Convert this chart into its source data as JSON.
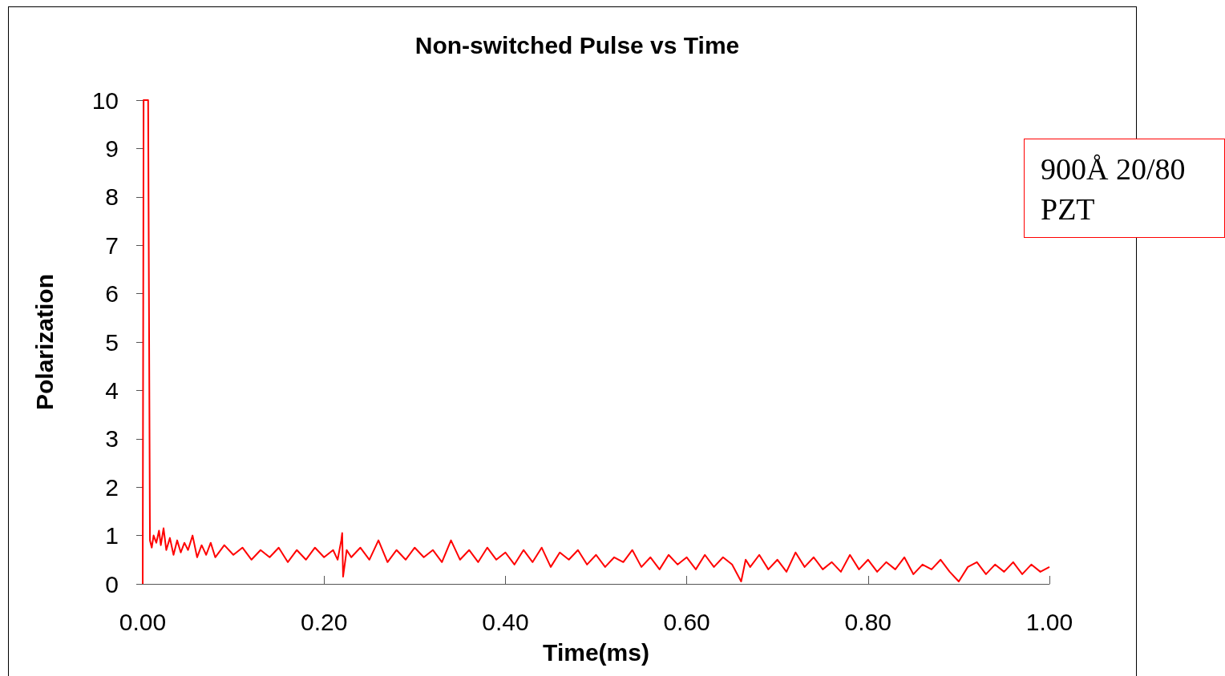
{
  "chart_data": {
    "type": "line",
    "title": "Non-switched Pulse vs Time",
    "xlabel": "Time(ms)",
    "ylabel": "Polarization",
    "annotations": [
      "900Å 20/80 PZT"
    ],
    "x": [
      0,
      0.001,
      0.003,
      0.006,
      0.008,
      0.01,
      0.012,
      0.015,
      0.018,
      0.02,
      0.023,
      0.026,
      0.03,
      0.034,
      0.038,
      0.042,
      0.046,
      0.05,
      0.055,
      0.06,
      0.065,
      0.07,
      0.075,
      0.08,
      0.09,
      0.1,
      0.11,
      0.12,
      0.13,
      0.14,
      0.15,
      0.16,
      0.17,
      0.18,
      0.19,
      0.2,
      0.21,
      0.215,
      0.219,
      0.22,
      0.221,
      0.225,
      0.23,
      0.24,
      0.25,
      0.26,
      0.27,
      0.28,
      0.29,
      0.3,
      0.31,
      0.32,
      0.33,
      0.34,
      0.35,
      0.36,
      0.37,
      0.38,
      0.39,
      0.4,
      0.41,
      0.42,
      0.43,
      0.44,
      0.45,
      0.46,
      0.47,
      0.48,
      0.49,
      0.5,
      0.51,
      0.52,
      0.53,
      0.54,
      0.55,
      0.56,
      0.57,
      0.58,
      0.59,
      0.6,
      0.61,
      0.62,
      0.63,
      0.64,
      0.65,
      0.66,
      0.665,
      0.67,
      0.68,
      0.69,
      0.7,
      0.71,
      0.72,
      0.73,
      0.74,
      0.75,
      0.76,
      0.77,
      0.78,
      0.79,
      0.8,
      0.81,
      0.82,
      0.83,
      0.84,
      0.85,
      0.86,
      0.87,
      0.88,
      0.89,
      0.9,
      0.91,
      0.92,
      0.93,
      0.94,
      0.95,
      0.96,
      0.97,
      0.98,
      0.99,
      1.0
    ],
    "series": [
      {
        "color": "#ff0000",
        "values": [
          0,
          10,
          10,
          10,
          0.9,
          0.75,
          1.0,
          0.85,
          1.1,
          0.8,
          1.15,
          0.7,
          0.95,
          0.6,
          0.9,
          0.65,
          0.85,
          0.7,
          1.0,
          0.55,
          0.8,
          0.6,
          0.85,
          0.55,
          0.8,
          0.6,
          0.75,
          0.5,
          0.7,
          0.55,
          0.75,
          0.45,
          0.7,
          0.5,
          0.75,
          0.55,
          0.7,
          0.5,
          0.9,
          1.05,
          0.15,
          0.7,
          0.55,
          0.75,
          0.5,
          0.9,
          0.45,
          0.7,
          0.5,
          0.75,
          0.55,
          0.7,
          0.45,
          0.9,
          0.5,
          0.7,
          0.45,
          0.75,
          0.5,
          0.65,
          0.4,
          0.7,
          0.45,
          0.75,
          0.35,
          0.65,
          0.5,
          0.7,
          0.4,
          0.6,
          0.35,
          0.55,
          0.45,
          0.7,
          0.35,
          0.55,
          0.3,
          0.6,
          0.4,
          0.55,
          0.3,
          0.6,
          0.35,
          0.55,
          0.4,
          0.05,
          0.5,
          0.35,
          0.6,
          0.3,
          0.5,
          0.25,
          0.65,
          0.35,
          0.55,
          0.3,
          0.45,
          0.25,
          0.6,
          0.3,
          0.5,
          0.25,
          0.45,
          0.3,
          0.55,
          0.2,
          0.4,
          0.3,
          0.5,
          0.25,
          0.05,
          0.35,
          0.45,
          0.2,
          0.4,
          0.25,
          0.45,
          0.2,
          0.4,
          0.25,
          0.35
        ]
      }
    ],
    "xlim": [
      0,
      1
    ],
    "xticks": [
      {
        "value": 0,
        "label": "0.00"
      },
      {
        "value": 0.2,
        "label": "0.20"
      },
      {
        "value": 0.4,
        "label": "0.40"
      },
      {
        "value": 0.6,
        "label": "0.60"
      },
      {
        "value": 0.8,
        "label": "0.80"
      },
      {
        "value": 1,
        "label": "1.00"
      }
    ],
    "ylim": [
      0,
      10
    ],
    "yticks": [
      0,
      1,
      2,
      3,
      4,
      5,
      6,
      7,
      8,
      9,
      10
    ],
    "grid": false,
    "marker": "none",
    "line_style": "solid"
  }
}
